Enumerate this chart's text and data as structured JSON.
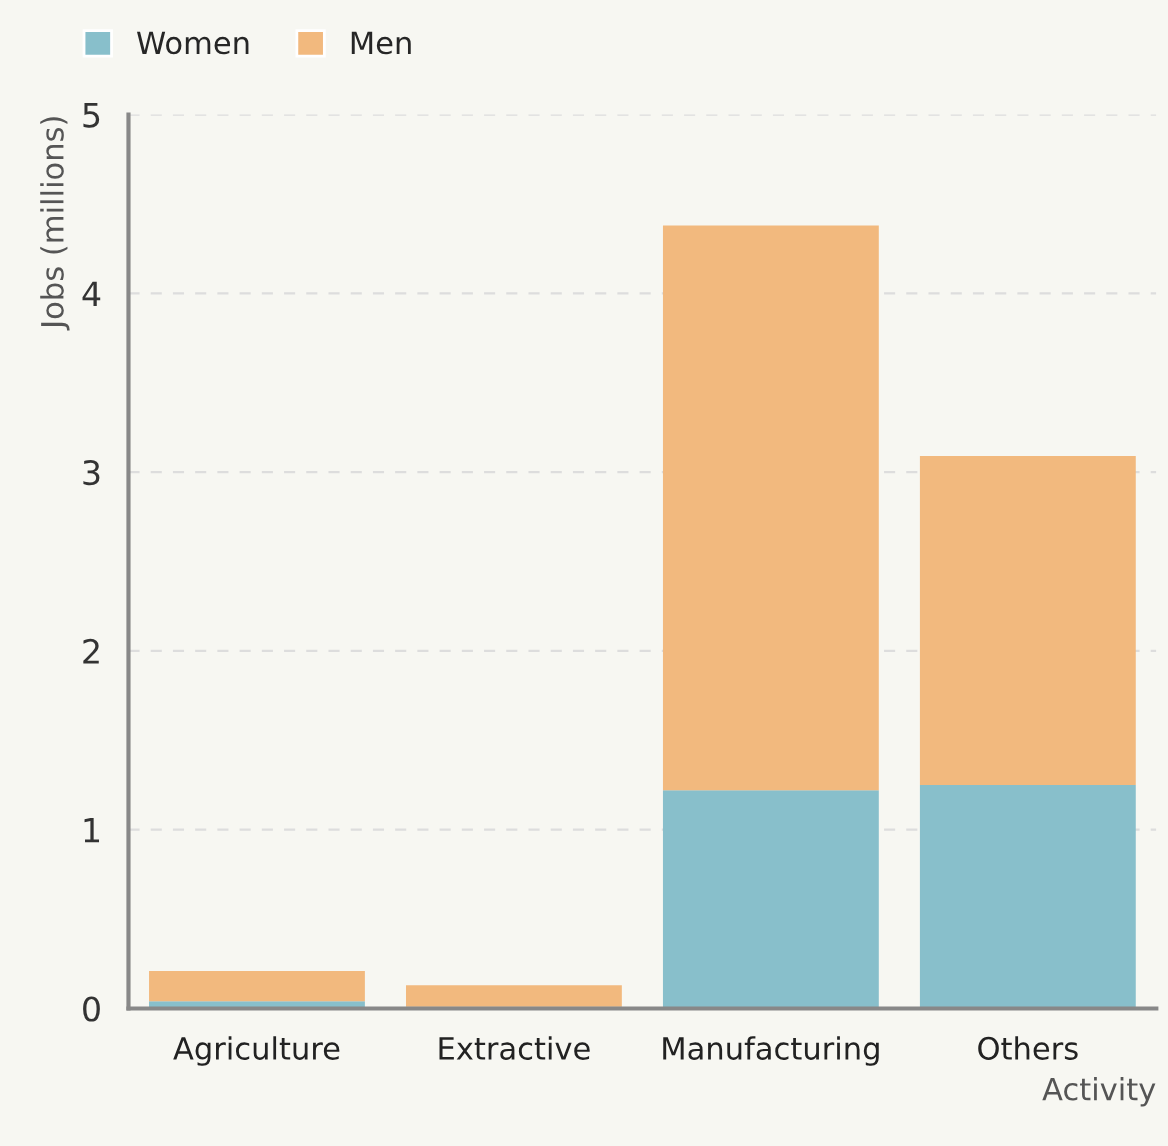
{
  "chart_data": {
    "type": "bar",
    "stacked": true,
    "xlabel": "Activity",
    "ylabel": "Jobs (millions)",
    "categories": [
      "Agriculture",
      "Extractive",
      "Manufacturing",
      "Others"
    ],
    "series": [
      {
        "name": "Women",
        "color": "#88bfcb",
        "values": [
          0.04,
          0.01,
          1.22,
          1.25
        ]
      },
      {
        "name": "Men",
        "color": "#f2b97e",
        "values": [
          0.17,
          0.12,
          3.16,
          1.84
        ]
      }
    ],
    "ylim": [
      0,
      5
    ],
    "yticks": [
      0,
      1,
      2,
      3,
      4,
      5
    ],
    "grid": "y",
    "legend": "top left"
  }
}
